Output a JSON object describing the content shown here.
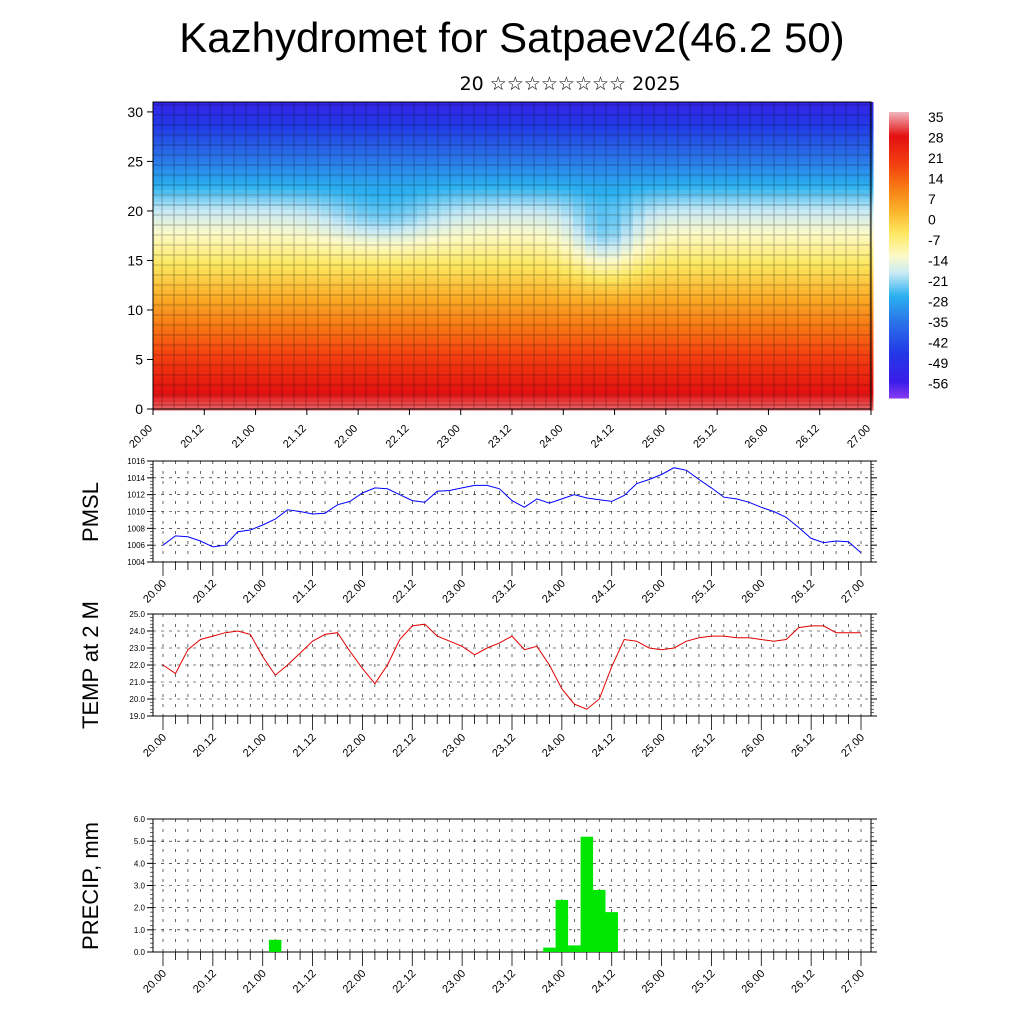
{
  "header": {
    "title": "Kazhydromet for Satpaev2(46.2 50)",
    "subtitle": "20 ☆☆☆☆☆☆☆☆ 2025"
  },
  "time_ticks": [
    "20.00",
    "20.12",
    "21.00",
    "21.12",
    "22.00",
    "22.12",
    "23.00",
    "23.12",
    "24.00",
    "24.12",
    "25.00",
    "25.12",
    "26.00",
    "26.12",
    "27.00"
  ],
  "chart_data": [
    {
      "type": "heatmap",
      "description_free": true,
      "x_ticks": [
        "20.00",
        "20.12",
        "21.00",
        "21.12",
        "22.00",
        "22.12",
        "23.00",
        "23.12",
        "24.00",
        "24.12",
        "25.00",
        "25.12",
        "26.00",
        "26.12",
        "27.00"
      ],
      "y_ticks": [
        0,
        5,
        10,
        15,
        20,
        25,
        30
      ],
      "ylim": [
        0,
        31
      ],
      "colorbar": {
        "labels": [
          "35",
          "28",
          "21",
          "14",
          "7",
          "0",
          "-7",
          "-14",
          "-21",
          "-28",
          "-35",
          "-42",
          "-49",
          "-56"
        ],
        "stops": [
          {
            "v": 38,
            "c": "#f0b0b8"
          },
          {
            "v": 30,
            "c": "#e21010"
          },
          {
            "v": 20,
            "c": "#f44010"
          },
          {
            "v": 12,
            "c": "#f87a14"
          },
          {
            "v": 4,
            "c": "#fbb22a"
          },
          {
            "v": -4,
            "c": "#fde860"
          },
          {
            "v": -12,
            "c": "#fdfac8"
          },
          {
            "v": -18,
            "c": "#c8eaf5"
          },
          {
            "v": -26,
            "c": "#2ab0f0"
          },
          {
            "v": -36,
            "c": "#2a6ee8"
          },
          {
            "v": -46,
            "c": "#2238e6"
          },
          {
            "v": -56,
            "c": "#3c1cea"
          },
          {
            "v": -62,
            "c": "#8a3cf0"
          }
        ]
      }
    },
    {
      "type": "line",
      "ylabel": "PMSL",
      "ylim": [
        1004,
        1016
      ],
      "y_ticks": [
        "1004",
        "1006",
        "1008",
        "1010",
        "1012",
        "1014",
        "1016"
      ],
      "color": "#0000ff",
      "x": [
        0,
        3,
        6,
        9,
        12,
        15,
        18,
        21,
        24,
        27,
        30,
        33,
        36,
        39,
        42,
        45,
        48,
        51,
        54,
        57,
        60,
        63,
        66,
        69,
        72,
        75,
        78,
        81,
        84,
        87,
        90,
        93,
        96,
        99,
        102,
        105,
        108,
        111,
        114,
        117,
        120,
        123,
        126,
        129,
        132,
        135,
        138,
        141,
        144,
        147,
        150,
        153,
        156,
        159,
        162,
        165,
        168
      ],
      "values": [
        1006.0,
        1007.1,
        1007.0,
        1006.5,
        1005.8,
        1006.0,
        1007.6,
        1007.8,
        1008.4,
        1009.1,
        1010.2,
        1010.0,
        1009.7,
        1009.8,
        1010.8,
        1011.2,
        1012.2,
        1012.8,
        1012.7,
        1012.0,
        1011.3,
        1011.1,
        1012.4,
        1012.5,
        1012.8,
        1013.1,
        1013.1,
        1012.7,
        1011.3,
        1010.5,
        1011.5,
        1011.0,
        1011.5,
        1012.0,
        1011.6,
        1011.4,
        1011.2,
        1011.9,
        1013.3,
        1013.8,
        1014.4,
        1015.2,
        1014.9,
        1013.8,
        1012.8,
        1011.7,
        1011.5,
        1011.1,
        1010.5,
        1010.0,
        1009.3,
        1008.1,
        1006.8,
        1006.3,
        1006.5,
        1006.4,
        1005.1
      ]
    },
    {
      "type": "line",
      "ylabel": "TEMP at 2 M",
      "ylim": [
        19.0,
        25.0
      ],
      "y_ticks": [
        "19.0",
        "20.0",
        "21.0",
        "22.0",
        "23.0",
        "24.0",
        "25.0"
      ],
      "color": "#e00000",
      "x": [
        0,
        3,
        6,
        9,
        12,
        15,
        18,
        21,
        24,
        27,
        30,
        33,
        36,
        39,
        42,
        45,
        48,
        51,
        54,
        57,
        60,
        63,
        66,
        69,
        72,
        75,
        78,
        81,
        84,
        87,
        90,
        93,
        96,
        99,
        102,
        105,
        108,
        111,
        114,
        117,
        120,
        123,
        126,
        129,
        132,
        135,
        138,
        141,
        144,
        147,
        150,
        153,
        156,
        159,
        162,
        165,
        168
      ],
      "values": [
        22.0,
        21.5,
        22.9,
        23.5,
        23.7,
        23.9,
        24.0,
        23.8,
        22.5,
        21.4,
        22.0,
        22.7,
        23.4,
        23.8,
        23.9,
        22.8,
        21.8,
        20.9,
        22.0,
        23.5,
        24.3,
        24.4,
        23.7,
        23.4,
        23.1,
        22.6,
        23.0,
        23.3,
        23.7,
        22.9,
        23.1,
        22.0,
        20.6,
        19.7,
        19.4,
        20.0,
        21.9,
        23.5,
        23.4,
        23.0,
        22.9,
        23.0,
        23.4,
        23.6,
        23.7,
        23.7,
        23.6,
        23.6,
        23.5,
        23.4,
        23.5,
        24.2,
        24.3,
        24.3,
        23.9,
        23.9,
        23.9
      ]
    },
    {
      "type": "bar",
      "ylabel": "PRECIP, mm",
      "ylim": [
        0.0,
        6.0
      ],
      "y_ticks": [
        "0.0",
        "1.0",
        "2.0",
        "3.0",
        "4.0",
        "5.0",
        "6.0"
      ],
      "color": "#00e600",
      "bars": [
        {
          "x": 27,
          "value": 0.55
        },
        {
          "x": 93,
          "value": 0.2
        },
        {
          "x": 96,
          "value": 2.35
        },
        {
          "x": 99,
          "value": 0.3
        },
        {
          "x": 102,
          "value": 5.2
        },
        {
          "x": 105,
          "value": 2.8
        },
        {
          "x": 108,
          "value": 1.8
        }
      ]
    }
  ]
}
